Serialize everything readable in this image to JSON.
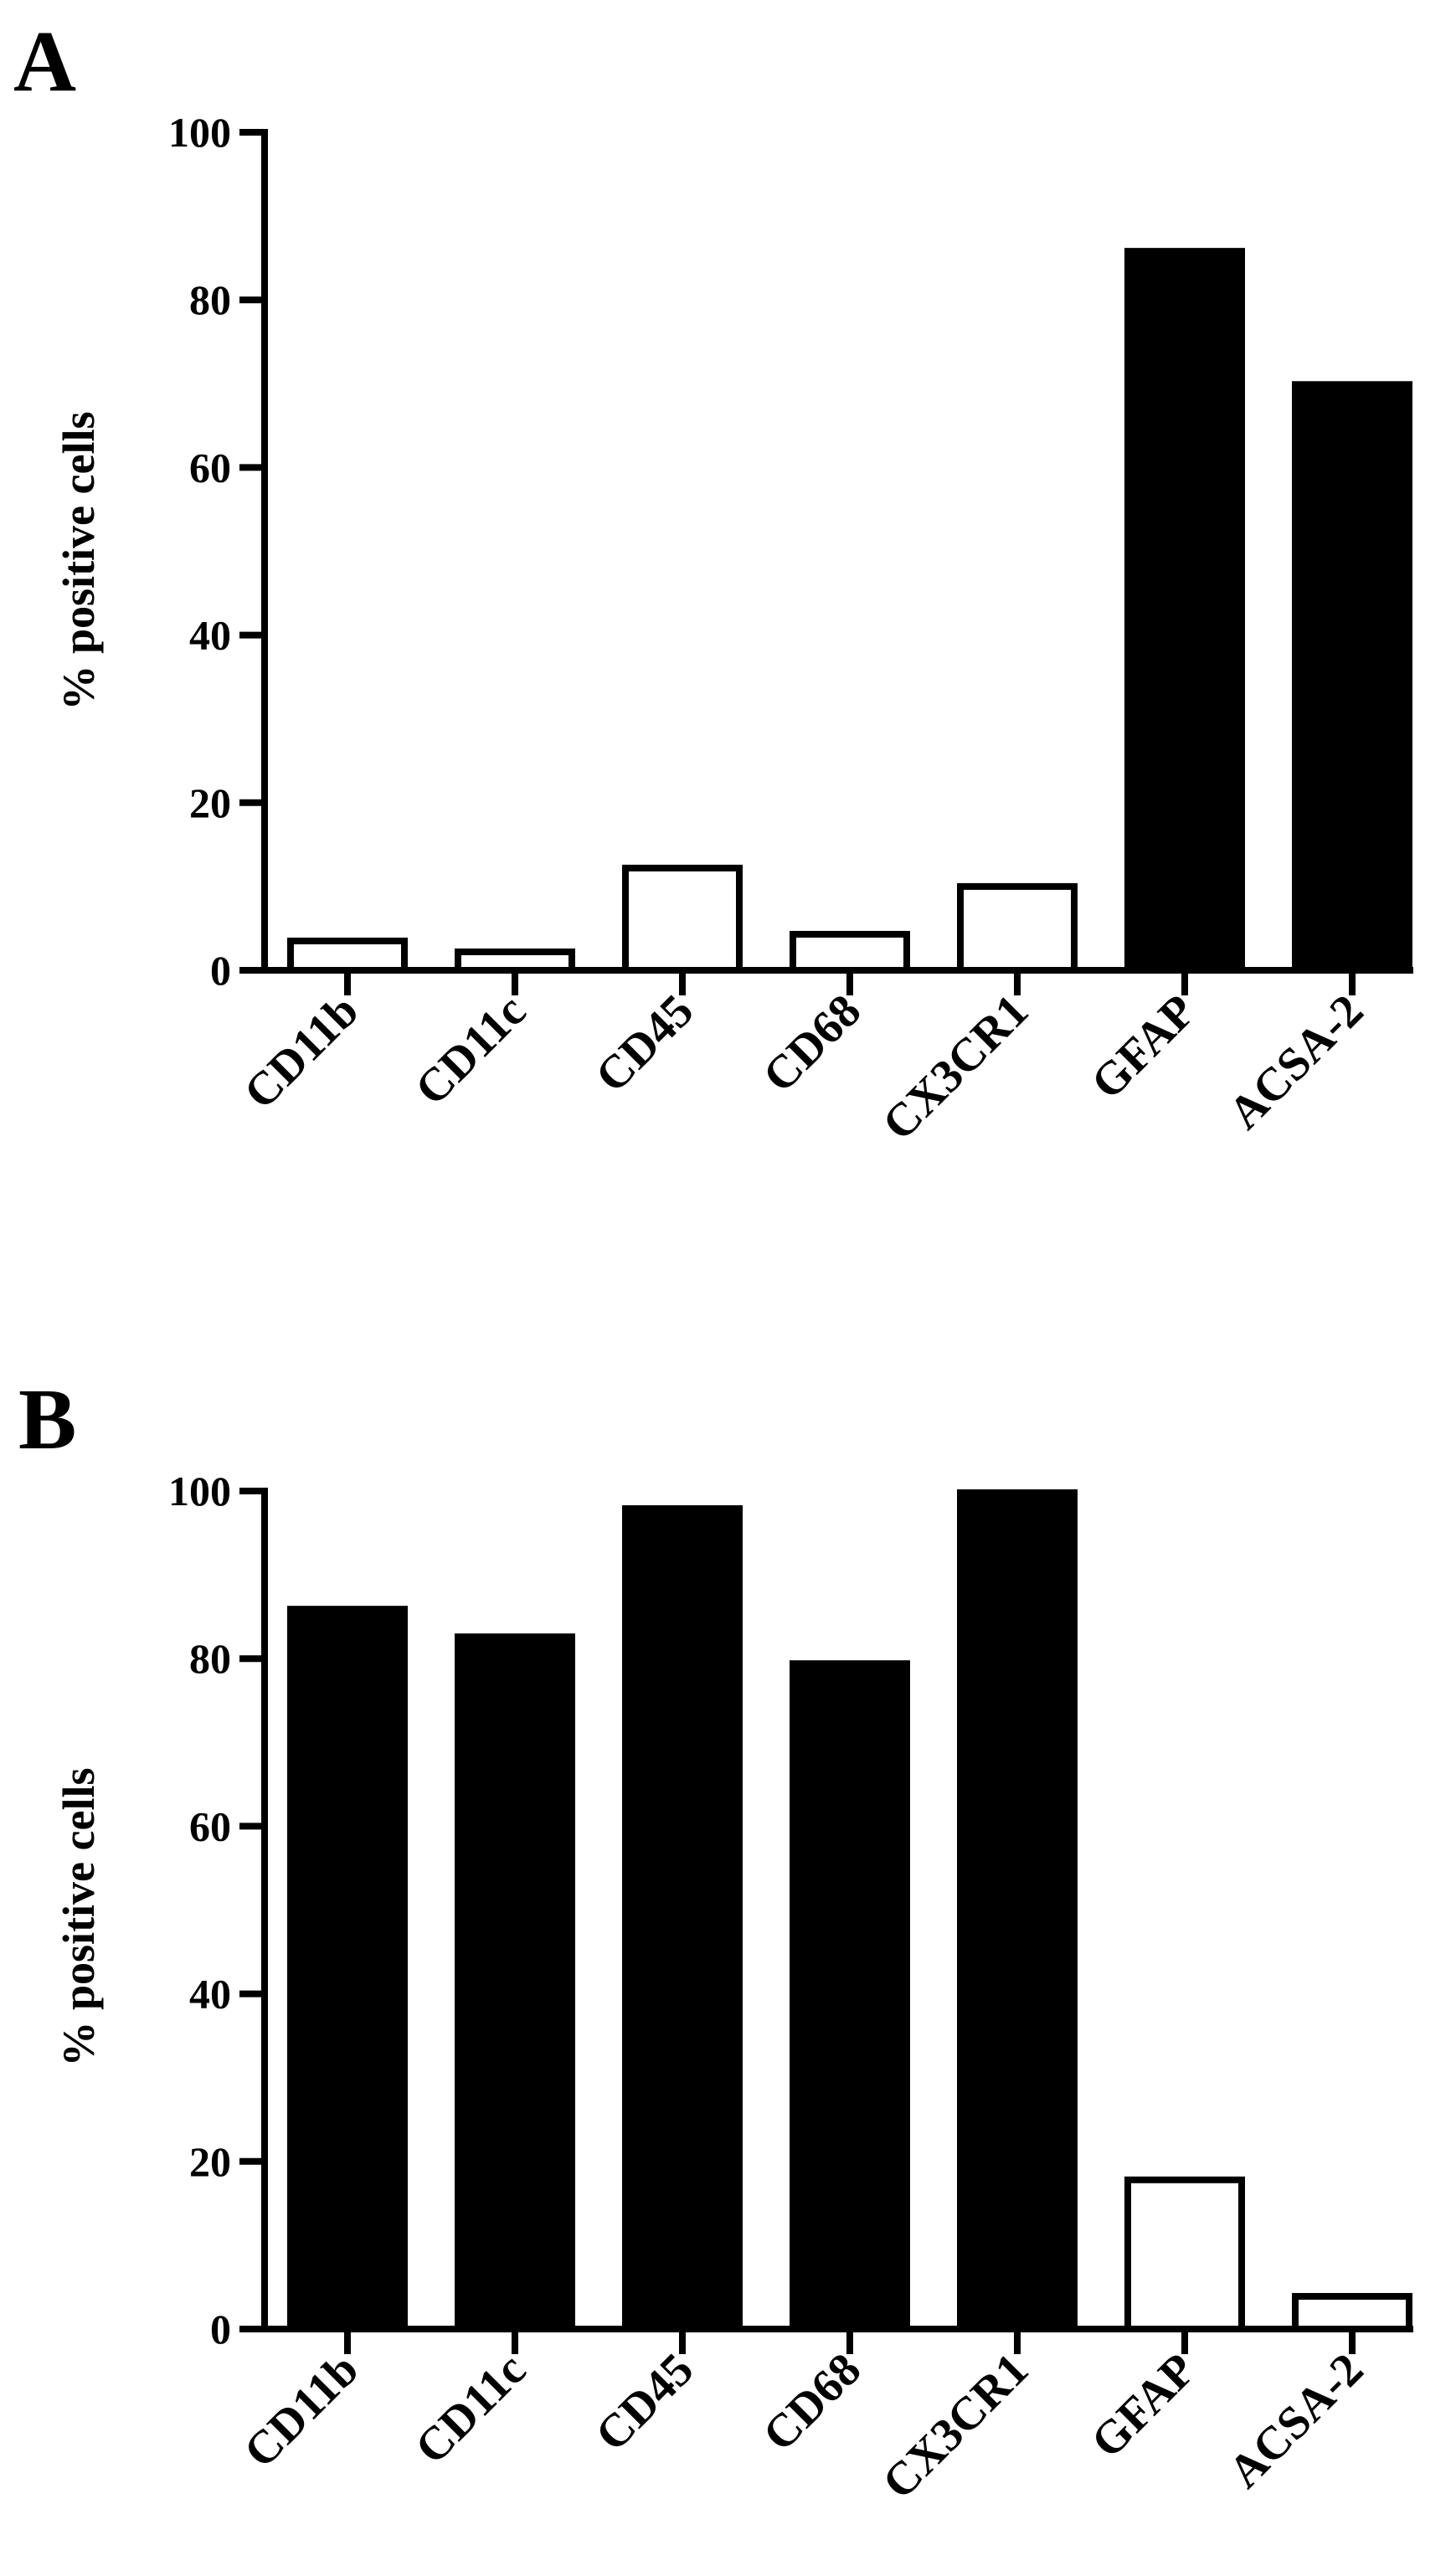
{
  "chart_data": [
    {
      "type": "bar",
      "panel_label": "A",
      "categories": [
        "CD11b",
        "CD11c",
        "CD45",
        "CD68",
        "CX3CR1",
        "GFAP",
        "ACSA-2"
      ],
      "values": [
        3.5,
        2.2,
        12.2,
        4.3,
        10.0,
        85.8,
        69.9
      ],
      "fill": [
        "#ffffff",
        "#ffffff",
        "#ffffff",
        "#ffffff",
        "#ffffff",
        "#000000",
        "#000000"
      ],
      "ylabel": "% positive cells",
      "xlabel": "",
      "ylim": [
        0,
        100
      ],
      "yticks": [
        "0",
        "20",
        "40",
        "60",
        "80",
        "100"
      ],
      "grid": false
    },
    {
      "type": "bar",
      "panel_label": "B",
      "categories": [
        "CD11b",
        "CD11c",
        "CD45",
        "CD68",
        "CX3CR1",
        "GFAP",
        "ACSA-2"
      ],
      "values": [
        85.9,
        82.6,
        97.9,
        79.4,
        99.8,
        17.8,
        3.9
      ],
      "fill": [
        "#000000",
        "#000000",
        "#000000",
        "#000000",
        "#000000",
        "#ffffff",
        "#ffffff"
      ],
      "ylabel": "% positive cells",
      "xlabel": "",
      "ylim": [
        0,
        100
      ],
      "yticks": [
        "0",
        "20",
        "40",
        "60",
        "80",
        "100"
      ],
      "grid": false
    }
  ]
}
